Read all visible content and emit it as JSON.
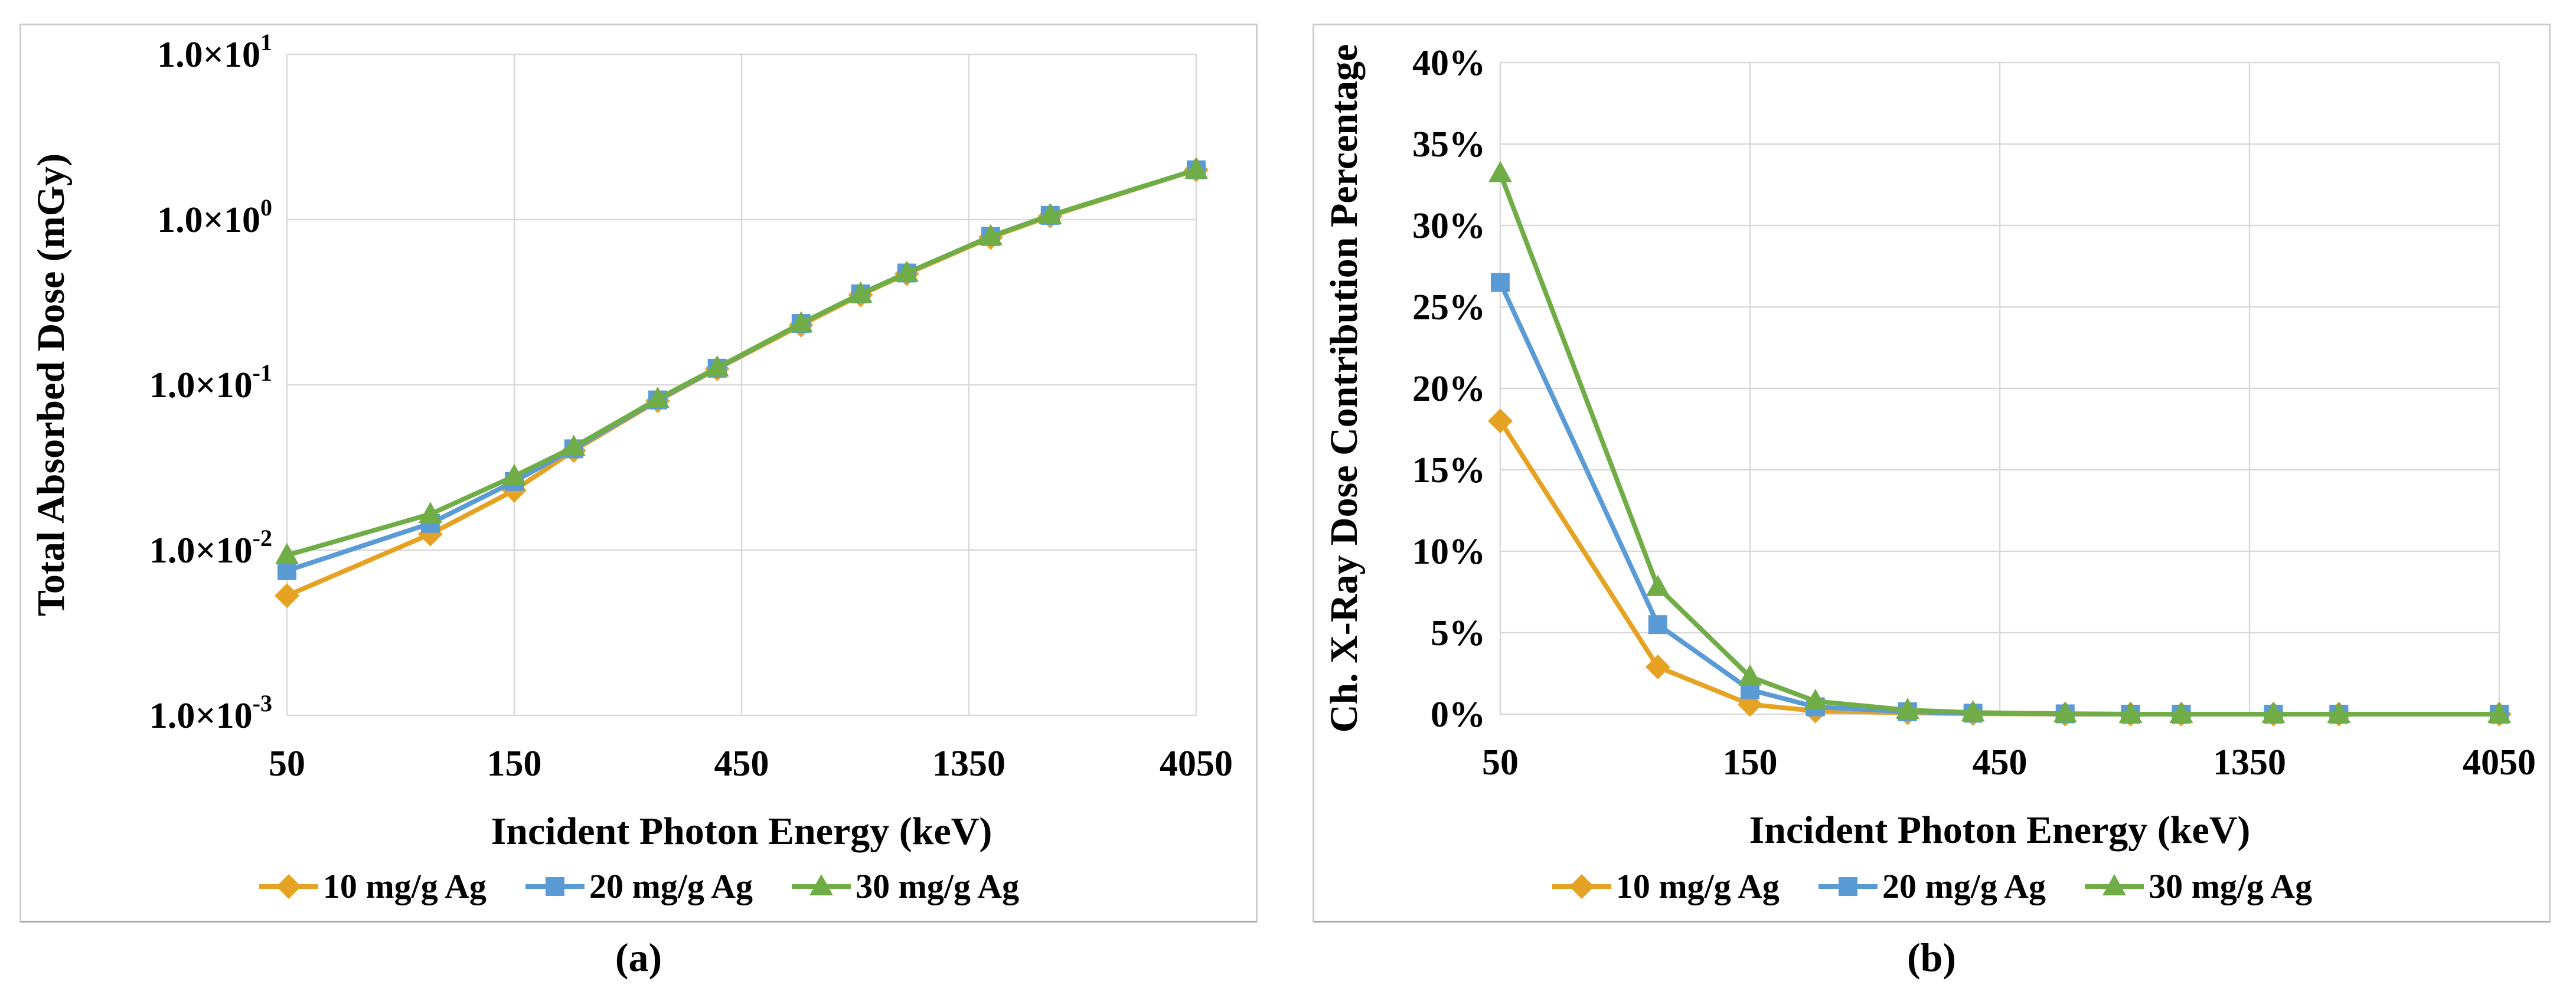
{
  "figure": {
    "captions": [
      "(a)",
      "(b)"
    ],
    "background": "#ffffff",
    "panel_border_color": "#cccccc",
    "gridline_color": "#d9d9d9",
    "text_color": "#000000"
  },
  "legend": {
    "position": "bottom",
    "items": [
      {
        "label": "10 mg/g Ag",
        "marker": "diamond",
        "color": "#E6A323"
      },
      {
        "label": "20 mg/g Ag",
        "marker": "square",
        "color": "#5B9BD5"
      },
      {
        "label": "30 mg/g Ag",
        "marker": "triangle",
        "color": "#70AD47"
      }
    ]
  },
  "chart_data": [
    {
      "id": "a",
      "type": "line",
      "title": "",
      "xlabel": "Incident Photon Energy (keV)",
      "ylabel": "Total Absorbed Dose (mGy)",
      "x_scale": "log",
      "y_scale": "log10",
      "grid": true,
      "legend_position": "bottom",
      "xlim": [
        50,
        4050
      ],
      "ylim": [
        0.001,
        10
      ],
      "x_ticks": [
        50,
        150,
        450,
        1350,
        4050
      ],
      "x_tick_labels": [
        "50",
        "150",
        "450",
        "1350",
        "4050"
      ],
      "y_ticks": [
        10,
        1,
        0.1,
        0.01,
        0.001
      ],
      "y_tick_labels": [
        "1.0×10^1",
        "1.0×10^0",
        "1.0×10^-1",
        "1.0×10^-2",
        "1.0×10^-3"
      ],
      "x": [
        50,
        100,
        150,
        200,
        300,
        400,
        600,
        800,
        1000,
        1500,
        2000,
        4050
      ],
      "series": [
        {
          "name": "10 mg/g Ag",
          "marker": "diamond",
          "color": "#E6A323",
          "values": [
            0.0053,
            0.0125,
            0.023,
            0.04,
            0.08,
            0.125,
            0.23,
            0.35,
            0.47,
            0.78,
            1.05,
            2.0
          ]
        },
        {
          "name": "20 mg/g Ag",
          "marker": "square",
          "color": "#5B9BD5",
          "values": [
            0.0075,
            0.0145,
            0.026,
            0.041,
            0.081,
            0.126,
            0.235,
            0.355,
            0.475,
            0.79,
            1.06,
            2.0
          ]
        },
        {
          "name": "30 mg/g Ag",
          "marker": "triangle",
          "color": "#70AD47",
          "values": [
            0.0093,
            0.0165,
            0.028,
            0.042,
            0.082,
            0.127,
            0.235,
            0.355,
            0.475,
            0.79,
            1.06,
            2.0
          ]
        }
      ]
    },
    {
      "id": "b",
      "type": "line",
      "title": "",
      "xlabel": "Incident Photon Energy (keV)",
      "ylabel": "Ch. X-Ray Dose Contribution Percentage",
      "x_scale": "log",
      "y_scale": "linear",
      "grid": true,
      "legend_position": "bottom",
      "xlim": [
        50,
        4050
      ],
      "ylim": [
        0,
        40
      ],
      "x_ticks": [
        50,
        150,
        450,
        1350,
        4050
      ],
      "x_tick_labels": [
        "50",
        "150",
        "450",
        "1350",
        "4050"
      ],
      "y_ticks": [
        40,
        35,
        30,
        25,
        20,
        15,
        10,
        5,
        0
      ],
      "y_tick_labels": [
        "40%",
        "35%",
        "30%",
        "25%",
        "20%",
        "15%",
        "10%",
        "5%",
        "0%"
      ],
      "x": [
        50,
        100,
        150,
        200,
        300,
        400,
        600,
        800,
        1000,
        1500,
        2000,
        4050
      ],
      "series": [
        {
          "name": "10 mg/g Ag",
          "marker": "diamond",
          "color": "#E6A323",
          "values": [
            18.0,
            2.9,
            0.6,
            0.2,
            0.08,
            0.03,
            0,
            0,
            0,
            0,
            0,
            0
          ]
        },
        {
          "name": "20 mg/g Ag",
          "marker": "square",
          "color": "#5B9BD5",
          "values": [
            26.5,
            5.5,
            1.5,
            0.45,
            0.15,
            0.06,
            0.02,
            0,
            0,
            0,
            0,
            0
          ]
        },
        {
          "name": "30 mg/g Ag",
          "marker": "triangle",
          "color": "#70AD47",
          "values": [
            33.2,
            7.8,
            2.3,
            0.8,
            0.25,
            0.1,
            0.03,
            0,
            0,
            0,
            0,
            0
          ]
        }
      ]
    }
  ]
}
